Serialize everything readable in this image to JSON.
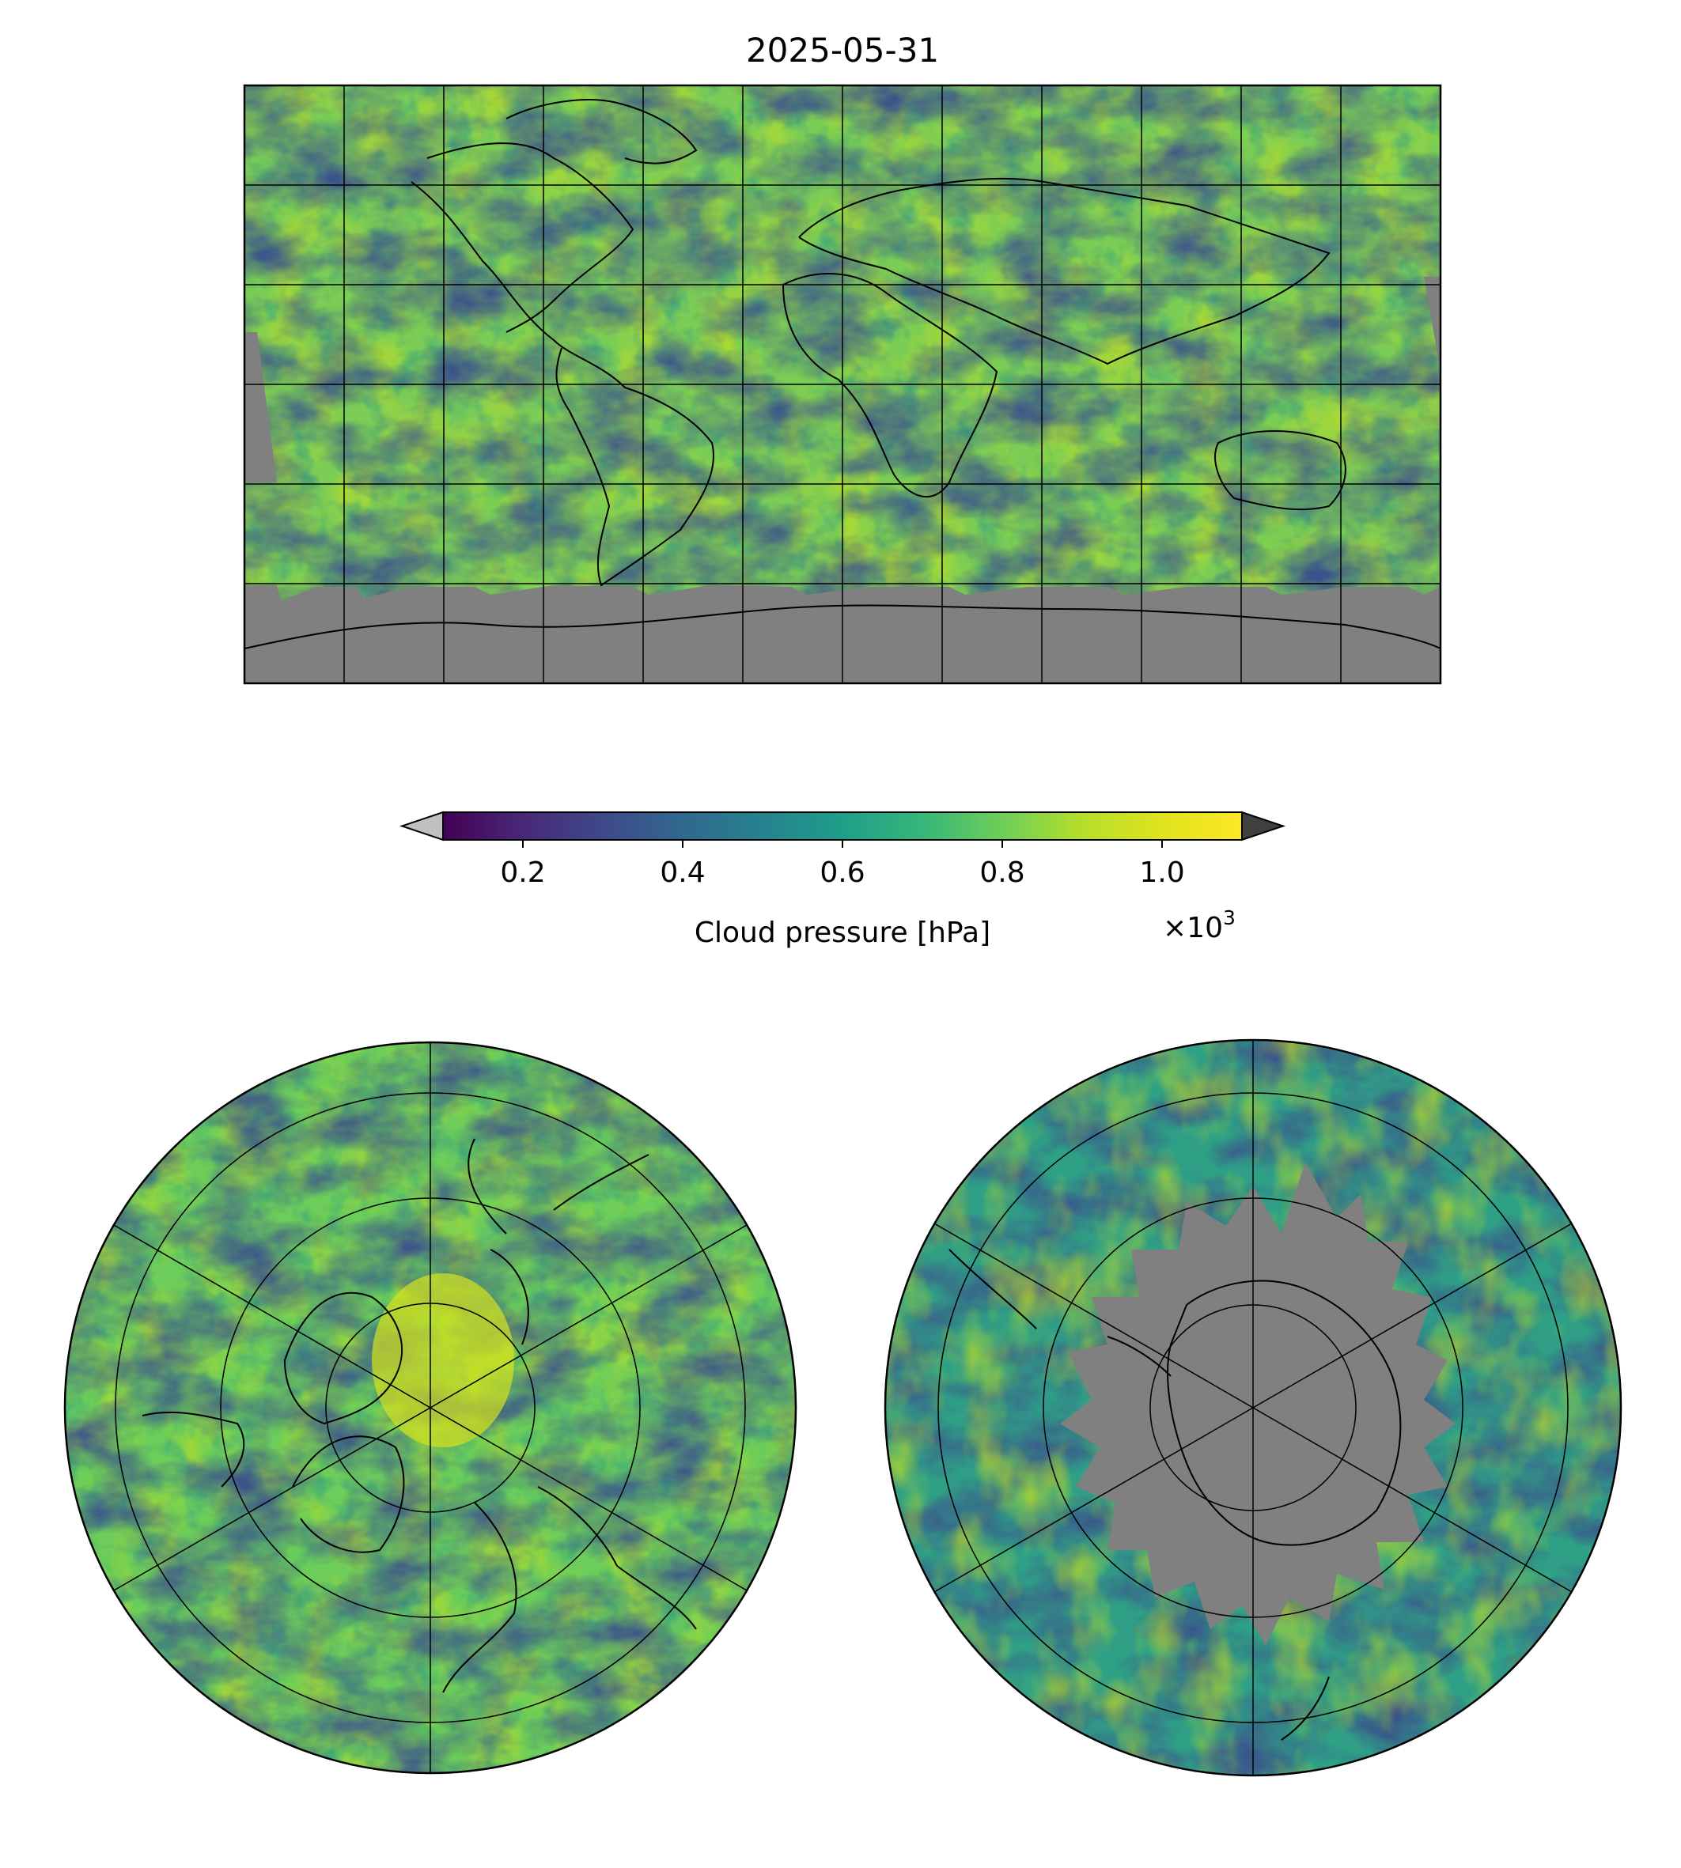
{
  "figure": {
    "title": "2025-05-31"
  },
  "colorbar": {
    "label": "Cloud pressure [hPa]",
    "tick_labels": [
      "0.2",
      "0.4",
      "0.6",
      "0.8",
      "1.0"
    ],
    "tick_values": [
      0.2,
      0.4,
      0.6,
      0.8,
      1.0
    ],
    "range": [
      0.1,
      1.1
    ],
    "offset_base": "×10",
    "offset_exp": "3",
    "colormap": "viridis",
    "under_color": "#c0c0c0",
    "over_color": "#404040",
    "extend": "both"
  },
  "maps": [
    {
      "name": "global",
      "projection": "plate-carree",
      "gridlines": true,
      "nodata_color": "#808080"
    },
    {
      "name": "north-polar",
      "projection": "north-polar-stereographic",
      "gridlines": true
    },
    {
      "name": "south-polar",
      "projection": "south-polar-stereographic",
      "gridlines": true,
      "nodata_color": "#808080"
    }
  ]
}
